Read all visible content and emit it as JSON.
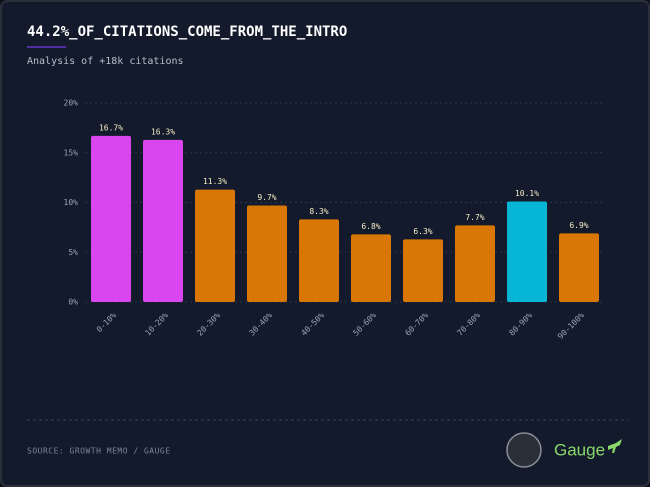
{
  "chart_data": {
    "type": "bar",
    "title": "44.2%_OF_CITATIONS_COME_FROM_THE_INTRO",
    "subtitle": "Analysis of +18k citations",
    "source": "SOURCE: GROWTH MEMO / GAUGE",
    "logo": "Gauge",
    "categories": [
      "0-10%",
      "10-20%",
      "20-30%",
      "30-40%",
      "40-50%",
      "50-60%",
      "60-70%",
      "70-80%",
      "80-90%",
      "90-100%"
    ],
    "values": [
      16.7,
      16.3,
      11.3,
      9.7,
      8.3,
      6.8,
      6.3,
      7.7,
      10.1,
      6.9
    ],
    "value_labels": [
      "16.7%",
      "16.3%",
      "11.3%",
      "9.7%",
      "8.3%",
      "6.8%",
      "6.3%",
      "7.7%",
      "10.1%",
      "6.9%"
    ],
    "colors": [
      "#d946ef",
      "#d946ef",
      "#d97706",
      "#d97706",
      "#d97706",
      "#d97706",
      "#d97706",
      "#d97706",
      "#06b6d4",
      "#d97706"
    ],
    "ylim": [
      0,
      20
    ],
    "yticks": [
      {
        "value": 0,
        "label": "0%"
      },
      {
        "value": 5,
        "label": "5%"
      },
      {
        "value": 10,
        "label": "10%"
      },
      {
        "value": 15,
        "label": "15%"
      },
      {
        "value": 20,
        "label": "20%"
      }
    ],
    "grid": true
  }
}
